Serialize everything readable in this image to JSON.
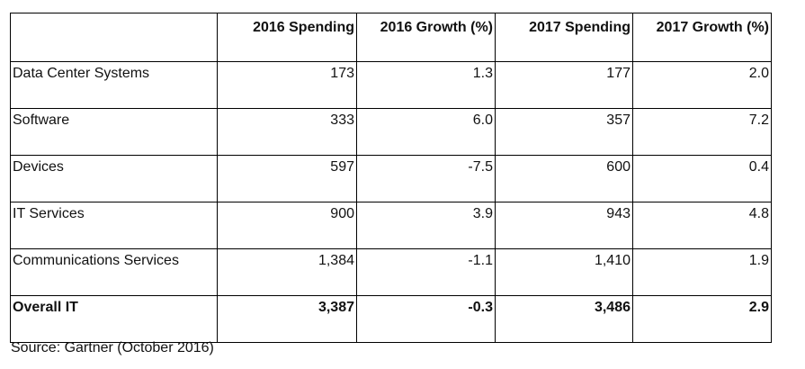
{
  "table": {
    "headers": [
      "",
      "2016 Spending",
      "2016 Growth (%)",
      "2017 Spending",
      "2017 Growth (%)"
    ],
    "rows": [
      {
        "label": "Data Center Systems",
        "s2016": "173",
        "g2016": "1.3",
        "s2017": "177",
        "g2017": "2.0"
      },
      {
        "label": "Software",
        "s2016": "333",
        "g2016": "6.0",
        "s2017": "357",
        "g2017": "7.2"
      },
      {
        "label": "Devices",
        "s2016": "597",
        "g2016": "-7.5",
        "s2017": "600",
        "g2017": "0.4"
      },
      {
        "label": "IT Services",
        "s2016": "900",
        "g2016": "3.9",
        "s2017": "943",
        "g2017": "4.8"
      },
      {
        "label": "Communications Services",
        "s2016": "1,384",
        "g2016": "-1.1",
        "s2017": "1,410",
        "g2017": "1.9"
      },
      {
        "label": "Overall IT",
        "s2016": "3,387",
        "g2016": "-0.3",
        "s2017": "3,486",
        "g2017": "2.9"
      }
    ]
  },
  "source": "Source: Gartner (October 2016)"
}
